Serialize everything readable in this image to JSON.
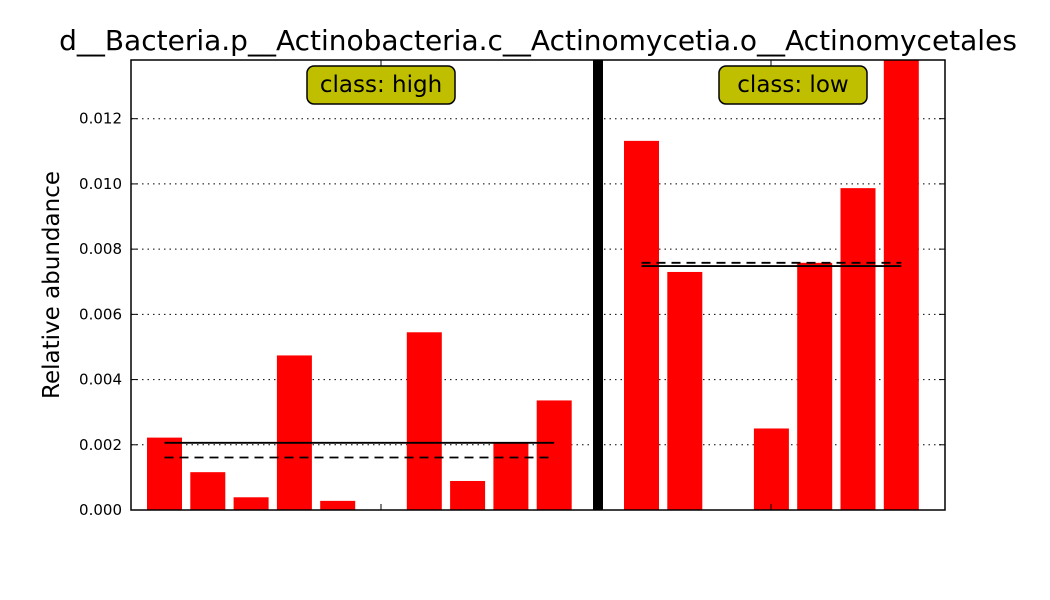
{
  "chart_data": {
    "type": "bar",
    "title": "d__Bacteria.p__Actinobacteria.c__Actinomycetia.o__Actinomycetales",
    "ylabel": "Relative abundance",
    "xlabel": "",
    "ylim": [
      0,
      0.0138
    ],
    "yticks": [
      "0.000",
      "0.002",
      "0.004",
      "0.006",
      "0.008",
      "0.010",
      "0.012"
    ],
    "grid": "horizontal dotted",
    "bar_color": "#ff0000",
    "badge_color": "#bfbf00",
    "groups": [
      {
        "label": "class: high",
        "values": [
          0.00222,
          0.00116,
          0.00039,
          0.00474,
          0.00028,
          0.0,
          0.00545,
          0.00089,
          0.00207,
          0.00336
        ],
        "mean": 0.00206,
        "median": 0.00161
      },
      {
        "label": "class: low",
        "values": [
          0.01132,
          0.0073,
          0.0,
          0.0025,
          0.00758,
          0.00987,
          0.0138
        ],
        "mean": 0.00748,
        "median": 0.00758
      }
    ]
  }
}
